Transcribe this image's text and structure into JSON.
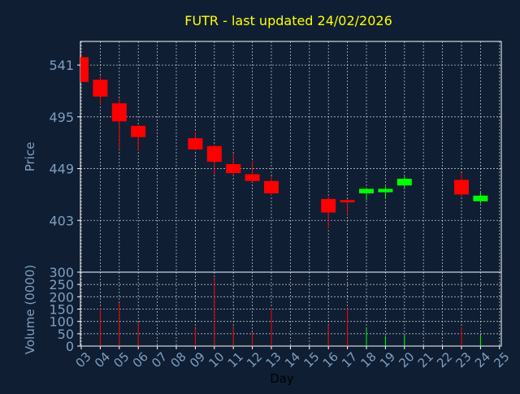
{
  "colors": {
    "background": "#0f1e33",
    "title": "#ffff00",
    "axis_text": "#7f9fc0",
    "xlabel": "#000000",
    "frame": "#ffffff",
    "grid": "#ffffff",
    "up": "#00ff00",
    "down": "#ff0000"
  },
  "chart_data": [
    {
      "type": "candlestick",
      "title": "FUTR - last updated 24/02/2026",
      "ylabel": "Price",
      "xlabel": "",
      "ylim": [
        357,
        562
      ],
      "yticks": [
        403,
        449,
        495,
        541
      ],
      "grid": true,
      "days": [
        "03",
        "04",
        "05",
        "06",
        "07",
        "08",
        "09",
        "10",
        "11",
        "12",
        "13",
        "14",
        "15",
        "16",
        "17",
        "18",
        "19",
        "20",
        "21",
        "22",
        "23",
        "24",
        "25"
      ],
      "xlim": [
        0,
        22
      ],
      "candles": [
        {
          "x": 0,
          "open": 548,
          "close": 526,
          "high": 550,
          "low": 526
        },
        {
          "x": 1,
          "open": 528,
          "close": 513,
          "high": 531,
          "low": 506
        },
        {
          "x": 2,
          "open": 507,
          "close": 491,
          "high": 511,
          "low": 466
        },
        {
          "x": 3,
          "open": 487,
          "close": 477,
          "high": 488,
          "low": 465
        },
        {
          "x": 6,
          "open": 476,
          "close": 466,
          "high": 481,
          "low": 465
        },
        {
          "x": 7,
          "open": 469,
          "close": 455,
          "high": 470,
          "low": 444
        },
        {
          "x": 8,
          "open": 453,
          "close": 445,
          "high": 462,
          "low": 443
        },
        {
          "x": 9,
          "open": 444,
          "close": 438,
          "high": 456,
          "low": 437
        },
        {
          "x": 10,
          "open": 438,
          "close": 427,
          "high": 442,
          "low": 425
        },
        {
          "x": 13,
          "open": 422,
          "close": 410,
          "high": 424,
          "low": 396
        },
        {
          "x": 14,
          "open": 421,
          "close": 419,
          "high": 422,
          "low": 408
        },
        {
          "x": 15,
          "open": 427,
          "close": 431,
          "high": 432,
          "low": 421
        },
        {
          "x": 16,
          "open": 428,
          "close": 431,
          "high": 433,
          "low": 423
        },
        {
          "x": 17,
          "open": 434,
          "close": 440,
          "high": 442,
          "low": 432
        },
        {
          "x": 20,
          "open": 439,
          "close": 426,
          "high": 445,
          "low": 424
        },
        {
          "x": 21,
          "open": 420,
          "close": 425,
          "high": 429,
          "low": 418
        }
      ]
    },
    {
      "type": "bar",
      "ylabel": "Volume (0000)",
      "xlabel": "Day",
      "ylim": [
        0,
        300
      ],
      "yticks": [
        0,
        50,
        100,
        150,
        200,
        250,
        300
      ],
      "grid": true,
      "bars": [
        {
          "x": 1,
          "value": 155,
          "direction": "down"
        },
        {
          "x": 2,
          "value": 175,
          "direction": "down"
        },
        {
          "x": 3,
          "value": 95,
          "direction": "down"
        },
        {
          "x": 6,
          "value": 72,
          "direction": "down"
        },
        {
          "x": 7,
          "value": 278,
          "direction": "down"
        },
        {
          "x": 8,
          "value": 80,
          "direction": "down"
        },
        {
          "x": 9,
          "value": 55,
          "direction": "down"
        },
        {
          "x": 10,
          "value": 155,
          "direction": "down"
        },
        {
          "x": 13,
          "value": 85,
          "direction": "down"
        },
        {
          "x": 14,
          "value": 152,
          "direction": "down"
        },
        {
          "x": 15,
          "value": 70,
          "direction": "up"
        },
        {
          "x": 16,
          "value": 40,
          "direction": "up"
        },
        {
          "x": 17,
          "value": 45,
          "direction": "up"
        },
        {
          "x": 20,
          "value": 75,
          "direction": "down"
        },
        {
          "x": 21,
          "value": 45,
          "direction": "up"
        }
      ]
    }
  ]
}
